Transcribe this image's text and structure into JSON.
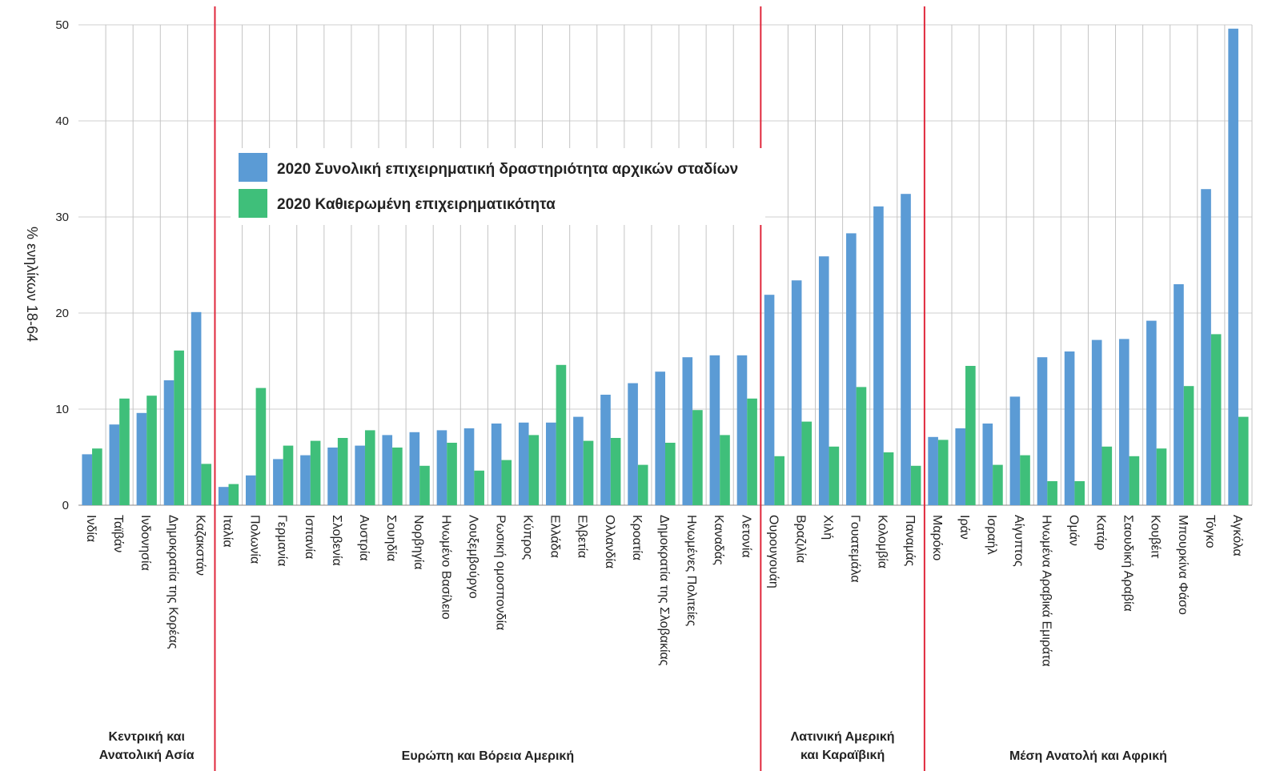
{
  "chart_data": {
    "type": "bar",
    "ylabel": "% ενηλίκων 18-64",
    "ylim": [
      0,
      50
    ],
    "yticks": [
      0,
      10,
      20,
      30,
      40,
      50
    ],
    "grid": true,
    "legend_position": "top-left inside",
    "series": [
      {
        "name": "2020 Συνολική επιχειρηματική δραστηριότητα αρχικών σταδίων",
        "color": "#5b9bd5"
      },
      {
        "name": "2020 Καθιερωμένη επιχειρηματικότητα",
        "color": "#3fbf7a"
      }
    ],
    "groups": [
      {
        "label": [
          "Κεντρική και",
          "Ανατολική Ασία"
        ],
        "categories": [
          "Ινδία",
          "Ταϊβάν",
          "Ινδονησία",
          "Δημοκρατία της Κορέας",
          "Καζακστάν"
        ],
        "tea": [
          5.3,
          8.4,
          9.6,
          13.0,
          20.1
        ],
        "ebo": [
          5.9,
          11.1,
          11.4,
          16.1,
          4.3
        ]
      },
      {
        "label": [
          "Ευρώπη και Βόρεια Αμερική"
        ],
        "categories": [
          "Ιταλία",
          "Πολωνία",
          "Γερμανία",
          "Ισπανία",
          "Σλοβενία",
          "Αυστρία",
          "Σουηδία",
          "Νορβηγία",
          "Ηνωμένο Βασίλειο",
          "Λουξεμβούργο",
          "Ρωσική ομοσπονδία",
          "Κύπρος",
          "Ελλάδα",
          "Ελβετία",
          "Ολλανδία",
          "Κροατία",
          "Δημοκρατία της Σλοβακίας",
          "Ηνωμένες Πολιτείες",
          "Καναδάς",
          "Λετονία"
        ],
        "tea": [
          1.9,
          3.1,
          4.8,
          5.2,
          6.0,
          6.2,
          7.3,
          7.6,
          7.8,
          8.0,
          8.5,
          8.6,
          8.6,
          9.2,
          11.5,
          12.7,
          13.9,
          15.4,
          15.6,
          15.6
        ],
        "ebo": [
          2.2,
          12.2,
          6.2,
          6.7,
          7.0,
          7.8,
          6.0,
          4.1,
          6.5,
          3.6,
          4.7,
          7.3,
          14.6,
          6.7,
          7.0,
          4.2,
          6.5,
          9.9,
          7.3,
          11.1
        ]
      },
      {
        "label": [
          "Λατινική Αμερική",
          "και Καραϊβική"
        ],
        "categories": [
          "Ουρουγουάη",
          "Βραζιλία",
          "Χιλή",
          "Γουατεμάλα",
          "Κολομβία",
          "Παναμάς"
        ],
        "tea": [
          21.9,
          23.4,
          25.9,
          28.3,
          31.1,
          32.4
        ],
        "ebo": [
          5.1,
          8.7,
          6.1,
          12.3,
          5.5,
          4.1
        ]
      },
      {
        "label": [
          "Μέση Ανατολή και Αφρική"
        ],
        "categories": [
          "Μαρόκο",
          "Ιράν",
          "Ισραήλ",
          "Αίγυπτος",
          "Ηνωμένα Αραβικά Εμιράτα",
          "Ομάν",
          "Κατάρ",
          "Σαουδική Αραβία",
          "Κουβέιτ",
          "Μπουρκίνα Φάσο",
          "Τόγκο",
          "Αγκόλα"
        ],
        "tea": [
          7.1,
          8.0,
          8.5,
          11.3,
          15.4,
          16.0,
          17.2,
          17.3,
          19.2,
          23.0,
          32.9,
          49.6
        ],
        "ebo": [
          6.8,
          14.5,
          4.2,
          5.2,
          2.5,
          2.5,
          6.1,
          5.1,
          5.9,
          12.4,
          17.8,
          9.2
        ]
      }
    ]
  }
}
